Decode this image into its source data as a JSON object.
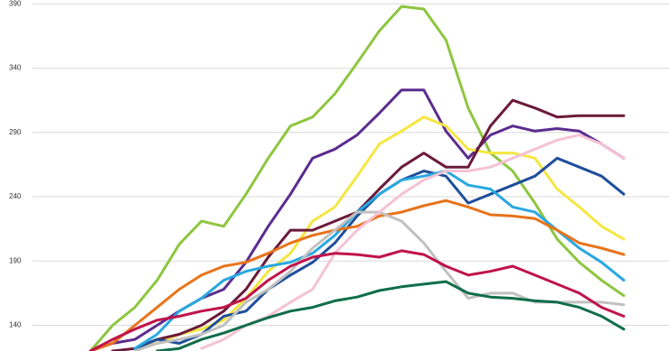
{
  "chart_data": {
    "type": "line",
    "categories": [
      null,
      null,
      null,
      null,
      null,
      null,
      null,
      null,
      null,
      null,
      null,
      null,
      null,
      null,
      null,
      null,
      null,
      null,
      null,
      null,
      null,
      null,
      null,
      null,
      null
    ],
    "ylim": [
      120,
      393
    ],
    "yticks": [
      140,
      190,
      240,
      290,
      340,
      390
    ],
    "grid": true,
    "series": [
      {
        "color": "#8dc63f",
        "values": [
          120,
          140,
          154,
          175,
          203,
          221,
          217,
          242,
          270,
          295,
          302,
          320,
          344,
          369,
          388,
          386,
          362,
          309,
          274,
          260,
          235,
          207,
          189,
          175,
          163
        ]
      },
      {
        "color": "#5b2c8f",
        "values": [
          120,
          126,
          129,
          140,
          151,
          161,
          168,
          189,
          217,
          242,
          270,
          277,
          288,
          305,
          323,
          323,
          291,
          270,
          288,
          295,
          291,
          293,
          291,
          281,
          270
        ]
      },
      {
        "color": "#f5e642",
        "values": [
          null,
          null,
          122,
          126,
          133,
          137,
          144,
          161,
          182,
          196,
          221,
          232,
          256,
          281,
          291,
          302,
          295,
          277,
          274,
          274,
          270,
          246,
          232,
          217,
          207
        ]
      },
      {
        "color": "#6b1a3a",
        "values": [
          null,
          120,
          122,
          129,
          133,
          140,
          151,
          168,
          193,
          214,
          214,
          221,
          228,
          246,
          263,
          274,
          263,
          263,
          295,
          315,
          309,
          302,
          303,
          303,
          303
        ]
      },
      {
        "color": "#1f4e9a",
        "values": [
          null,
          null,
          122,
          129,
          126,
          133,
          147,
          151,
          168,
          179,
          189,
          204,
          225,
          242,
          253,
          260,
          256,
          235,
          242,
          249,
          256,
          270,
          263,
          256,
          242
        ]
      },
      {
        "color": "#29a8e0",
        "values": [
          null,
          null,
          122,
          133,
          151,
          161,
          175,
          182,
          186,
          189,
          196,
          210,
          228,
          242,
          253,
          256,
          260,
          249,
          246,
          232,
          228,
          214,
          200,
          189,
          175
        ]
      },
      {
        "color": "#e8731a",
        "values": [
          120,
          126,
          140,
          154,
          168,
          179,
          186,
          189,
          196,
          204,
          210,
          214,
          217,
          225,
          228,
          233,
          237,
          232,
          226,
          225,
          223,
          214,
          204,
          200,
          195
        ]
      },
      {
        "color": "#c0c0c0",
        "values": [
          null,
          null,
          120,
          126,
          129,
          133,
          140,
          158,
          168,
          182,
          200,
          214,
          228,
          228,
          221,
          204,
          182,
          161,
          165,
          165,
          158,
          158,
          158,
          158,
          156
        ]
      },
      {
        "color": "#f4c2d4",
        "values": [
          null,
          null,
          null,
          null,
          null,
          122,
          129,
          140,
          147,
          158,
          168,
          196,
          214,
          228,
          242,
          253,
          260,
          260,
          263,
          270,
          277,
          284,
          288,
          281,
          270
        ]
      },
      {
        "color": "#c0134a",
        "values": [
          120,
          129,
          137,
          144,
          147,
          151,
          154,
          161,
          175,
          186,
          193,
          196,
          195,
          193,
          198,
          195,
          186,
          179,
          182,
          186,
          179,
          172,
          165,
          154,
          147
        ]
      },
      {
        "color": "#0f6e4a",
        "values": [
          null,
          null,
          null,
          120,
          122,
          129,
          134,
          140,
          146,
          151,
          154,
          159,
          162,
          167,
          170,
          172,
          174,
          165,
          162,
          161,
          159,
          158,
          154,
          147,
          137
        ]
      }
    ]
  }
}
